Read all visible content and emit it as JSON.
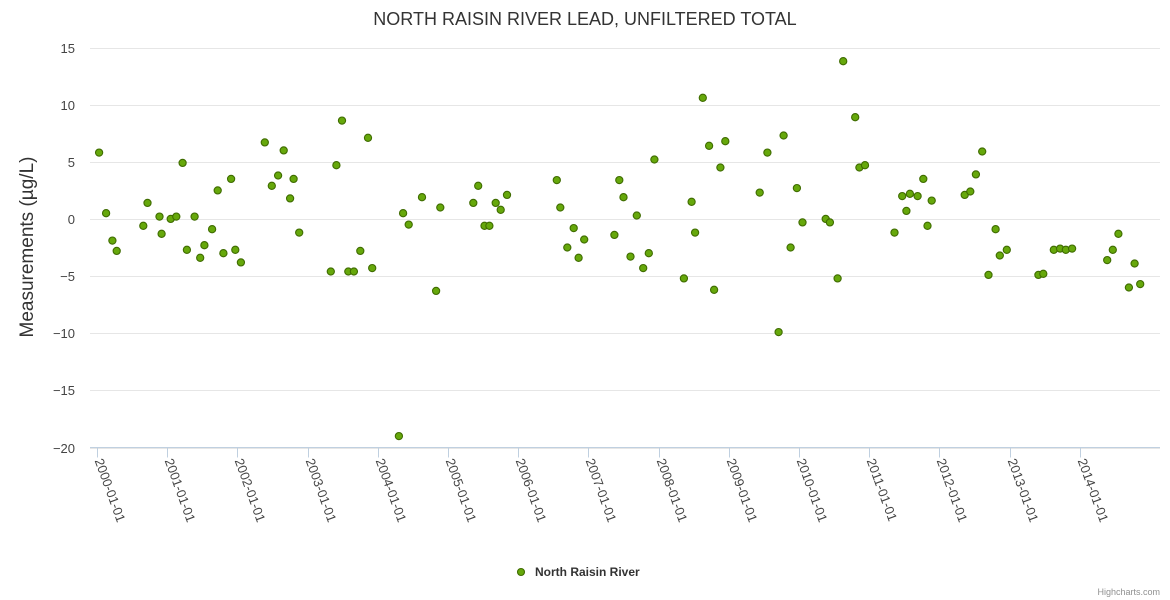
{
  "chart_data": {
    "type": "scatter",
    "title": "NORTH RAISIN RIVER LEAD, UNFILTERED TOTAL",
    "ylabel": "Measurements (µg/L)",
    "xlabel": "",
    "ylim": [
      -20,
      15
    ],
    "yticks": [
      "15",
      "10",
      "5",
      "0",
      "−5",
      "−10",
      "−15",
      "−20"
    ],
    "ytick_values": [
      15,
      10,
      5,
      0,
      -5,
      -10,
      -15,
      -20
    ],
    "xlim": [
      2000.0,
      2014.9
    ],
    "xticks": [
      "2000-01-01",
      "2001-01-01",
      "2002-01-01",
      "2003-01-01",
      "2004-01-01",
      "2005-01-01",
      "2006-01-01",
      "2007-01-01",
      "2008-01-01",
      "2009-01-01",
      "2010-01-01",
      "2011-01-01",
      "2012-01-01",
      "2013-01-01",
      "2014-01-01"
    ],
    "xtick_values": [
      2000,
      2001,
      2002,
      2003,
      2004,
      2005,
      2006,
      2007,
      2008,
      2009,
      2010,
      2011,
      2012,
      2013,
      2014
    ],
    "legend_position": "bottom-center",
    "credits": "Highcharts.com",
    "series": [
      {
        "name": "North Raisin River",
        "color": "#66a80b",
        "edge_color": "#3f6c00",
        "points": [
          [
            2000.03,
            5.8
          ],
          [
            2000.13,
            0.5
          ],
          [
            2000.22,
            -1.9
          ],
          [
            2000.28,
            -2.8
          ],
          [
            2000.66,
            -0.6
          ],
          [
            2000.72,
            1.4
          ],
          [
            2000.89,
            0.2
          ],
          [
            2000.92,
            -1.3
          ],
          [
            2001.05,
            0.0
          ],
          [
            2001.13,
            0.2
          ],
          [
            2001.22,
            4.9
          ],
          [
            2001.28,
            -2.7
          ],
          [
            2001.39,
            0.2
          ],
          [
            2001.47,
            -3.4
          ],
          [
            2001.53,
            -2.3
          ],
          [
            2001.64,
            -0.9
          ],
          [
            2001.72,
            2.5
          ],
          [
            2001.8,
            -3.0
          ],
          [
            2001.91,
            3.5
          ],
          [
            2001.97,
            -2.7
          ],
          [
            2002.05,
            -3.8
          ],
          [
            2002.39,
            6.7
          ],
          [
            2002.49,
            2.9
          ],
          [
            2002.58,
            3.8
          ],
          [
            2002.66,
            6.0
          ],
          [
            2002.75,
            1.8
          ],
          [
            2002.8,
            3.5
          ],
          [
            2002.88,
            -1.2
          ],
          [
            2003.33,
            -4.6
          ],
          [
            2003.41,
            4.7
          ],
          [
            2003.49,
            8.6
          ],
          [
            2003.58,
            -4.6
          ],
          [
            2003.66,
            -4.6
          ],
          [
            2003.75,
            -2.8
          ],
          [
            2003.86,
            7.1
          ],
          [
            2003.92,
            -4.3
          ],
          [
            2004.3,
            -19.0
          ],
          [
            2004.36,
            0.5
          ],
          [
            2004.44,
            -0.5
          ],
          [
            2004.63,
            1.9
          ],
          [
            2004.83,
            -6.3
          ],
          [
            2004.89,
            1.0
          ],
          [
            2005.36,
            1.4
          ],
          [
            2005.43,
            2.9
          ],
          [
            2005.52,
            -0.6
          ],
          [
            2005.59,
            -0.6
          ],
          [
            2005.68,
            1.4
          ],
          [
            2005.75,
            0.8
          ],
          [
            2005.84,
            2.1
          ],
          [
            2006.55,
            3.4
          ],
          [
            2006.6,
            1.0
          ],
          [
            2006.7,
            -2.5
          ],
          [
            2006.79,
            -0.8
          ],
          [
            2006.86,
            -3.4
          ],
          [
            2006.94,
            -1.8
          ],
          [
            2007.37,
            -1.4
          ],
          [
            2007.44,
            3.4
          ],
          [
            2007.5,
            1.9
          ],
          [
            2007.6,
            -3.3
          ],
          [
            2007.69,
            0.3
          ],
          [
            2007.78,
            -4.3
          ],
          [
            2007.86,
            -3.0
          ],
          [
            2007.94,
            5.2
          ],
          [
            2008.36,
            -5.2
          ],
          [
            2008.47,
            1.5
          ],
          [
            2008.52,
            -1.2
          ],
          [
            2008.63,
            10.6
          ],
          [
            2008.72,
            6.4
          ],
          [
            2008.79,
            -6.2
          ],
          [
            2008.88,
            4.5
          ],
          [
            2008.95,
            6.8
          ],
          [
            2009.44,
            2.3
          ],
          [
            2009.55,
            5.8
          ],
          [
            2009.71,
            -9.9
          ],
          [
            2009.78,
            7.3
          ],
          [
            2009.88,
            -2.5
          ],
          [
            2009.97,
            2.7
          ],
          [
            2010.05,
            -0.3
          ],
          [
            2010.38,
            0.0
          ],
          [
            2010.44,
            -0.3
          ],
          [
            2010.55,
            -5.2
          ],
          [
            2010.63,
            13.8
          ],
          [
            2010.8,
            8.9
          ],
          [
            2010.86,
            4.5
          ],
          [
            2010.94,
            4.7
          ],
          [
            2011.36,
            -1.2
          ],
          [
            2011.47,
            2.0
          ],
          [
            2011.53,
            0.7
          ],
          [
            2011.58,
            2.2
          ],
          [
            2011.69,
            2.0
          ],
          [
            2011.77,
            3.5
          ],
          [
            2011.83,
            -0.6
          ],
          [
            2011.89,
            1.6
          ],
          [
            2012.36,
            2.1
          ],
          [
            2012.44,
            2.4
          ],
          [
            2012.52,
            3.9
          ],
          [
            2012.61,
            5.9
          ],
          [
            2012.7,
            -4.9
          ],
          [
            2012.8,
            -0.9
          ],
          [
            2012.86,
            -3.2
          ],
          [
            2012.96,
            -2.7
          ],
          [
            2013.41,
            -4.9
          ],
          [
            2013.48,
            -4.8
          ],
          [
            2013.63,
            -2.7
          ],
          [
            2013.72,
            -2.6
          ],
          [
            2013.8,
            -2.7
          ],
          [
            2013.89,
            -2.6
          ],
          [
            2014.39,
            -3.6
          ],
          [
            2014.47,
            -2.7
          ],
          [
            2014.55,
            -1.3
          ],
          [
            2014.7,
            -6.0
          ],
          [
            2014.78,
            -3.9
          ],
          [
            2014.86,
            -5.7
          ]
        ]
      }
    ]
  }
}
